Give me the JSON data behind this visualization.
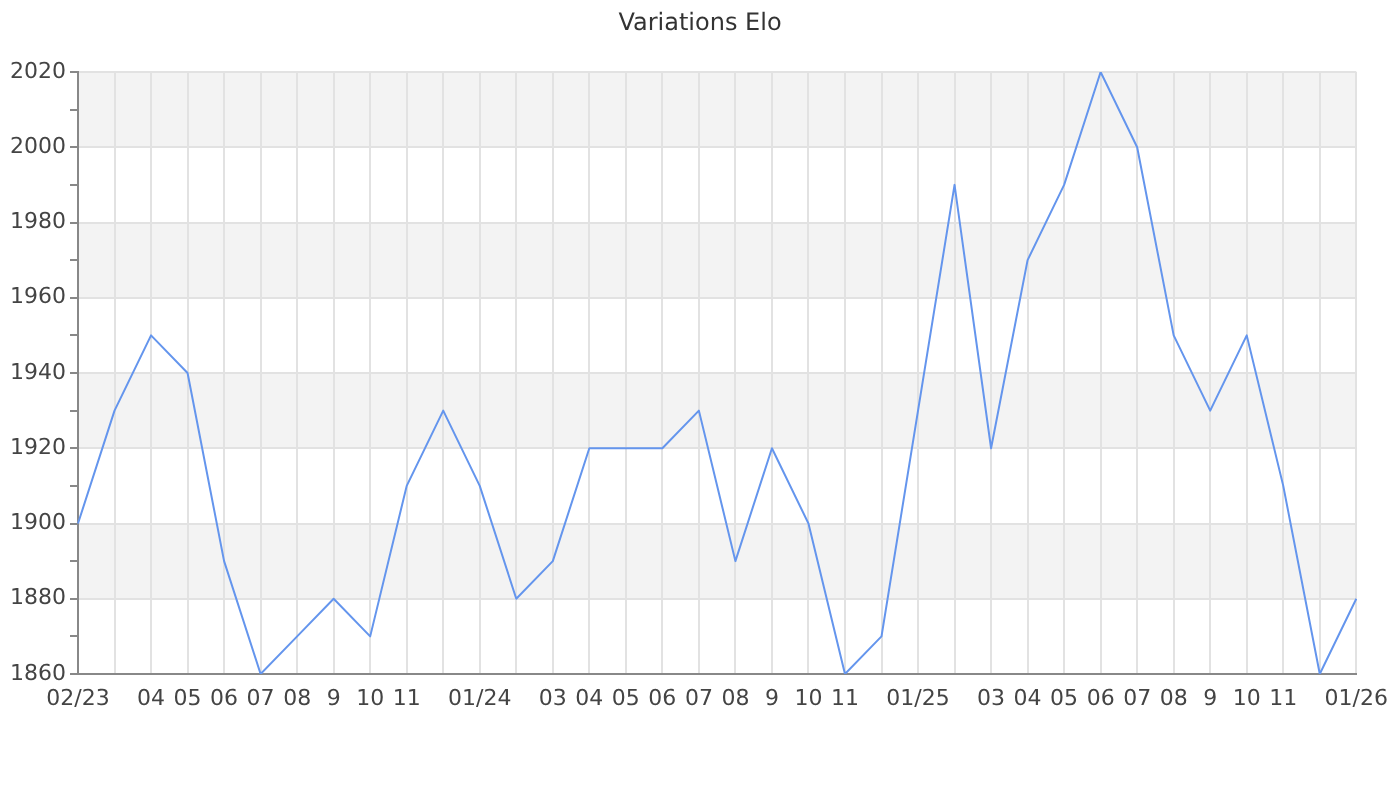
{
  "chart_data": {
    "type": "line",
    "title": "Variations Elo",
    "categories": [
      "02/23",
      null,
      "04",
      "05",
      "06",
      "07",
      "08",
      "9",
      "10",
      "11",
      null,
      "01/24",
      null,
      "03",
      "04",
      "05",
      "06",
      "07",
      "08",
      "9",
      "10",
      "11",
      null,
      "01/25",
      null,
      "03",
      "04",
      "05",
      "06",
      "07",
      "08",
      "9",
      "10",
      "11",
      null,
      "01/26"
    ],
    "series": [
      {
        "color": "#6495ed",
        "values": [
          1900,
          1930,
          1950,
          1940,
          1890,
          1860,
          1870,
          1880,
          1870,
          1910,
          1930,
          1910,
          1880,
          1890,
          1920,
          1920,
          1920,
          1930,
          1890,
          1920,
          1900,
          1860,
          1870,
          1930,
          1990,
          1920,
          1970,
          1990,
          2020,
          2000,
          1950,
          1930,
          1950,
          1910,
          1860,
          1880
        ]
      }
    ],
    "ylim": [
      1860,
      2020
    ],
    "yticks": [
      1860,
      {
        "value": 1870,
        "label": null
      },
      1880,
      {
        "value": 1890,
        "label": null
      },
      1900,
      {
        "value": 1910,
        "label": null
      },
      1920,
      {
        "value": 1930,
        "label": null
      },
      1940,
      {
        "value": 1950,
        "label": null
      },
      1960,
      {
        "value": 1970,
        "label": null
      },
      1980,
      {
        "value": 1990,
        "label": null
      },
      2000,
      {
        "value": 2010,
        "label": null
      },
      2020
    ],
    "bands": [
      {
        "axis": "y",
        "from": 1880,
        "to": 1900,
        "color": "#f3f3f3"
      },
      {
        "axis": "y",
        "from": 1920,
        "to": 1940,
        "color": "#f3f3f3"
      },
      {
        "axis": "y",
        "from": 1960,
        "to": 1980,
        "color": "#f3f3f3"
      },
      {
        "axis": "y",
        "from": 2000,
        "to": 2020,
        "color": "#f3f3f3"
      }
    ],
    "grid": true,
    "marker": "none",
    "line_style": "solid"
  }
}
